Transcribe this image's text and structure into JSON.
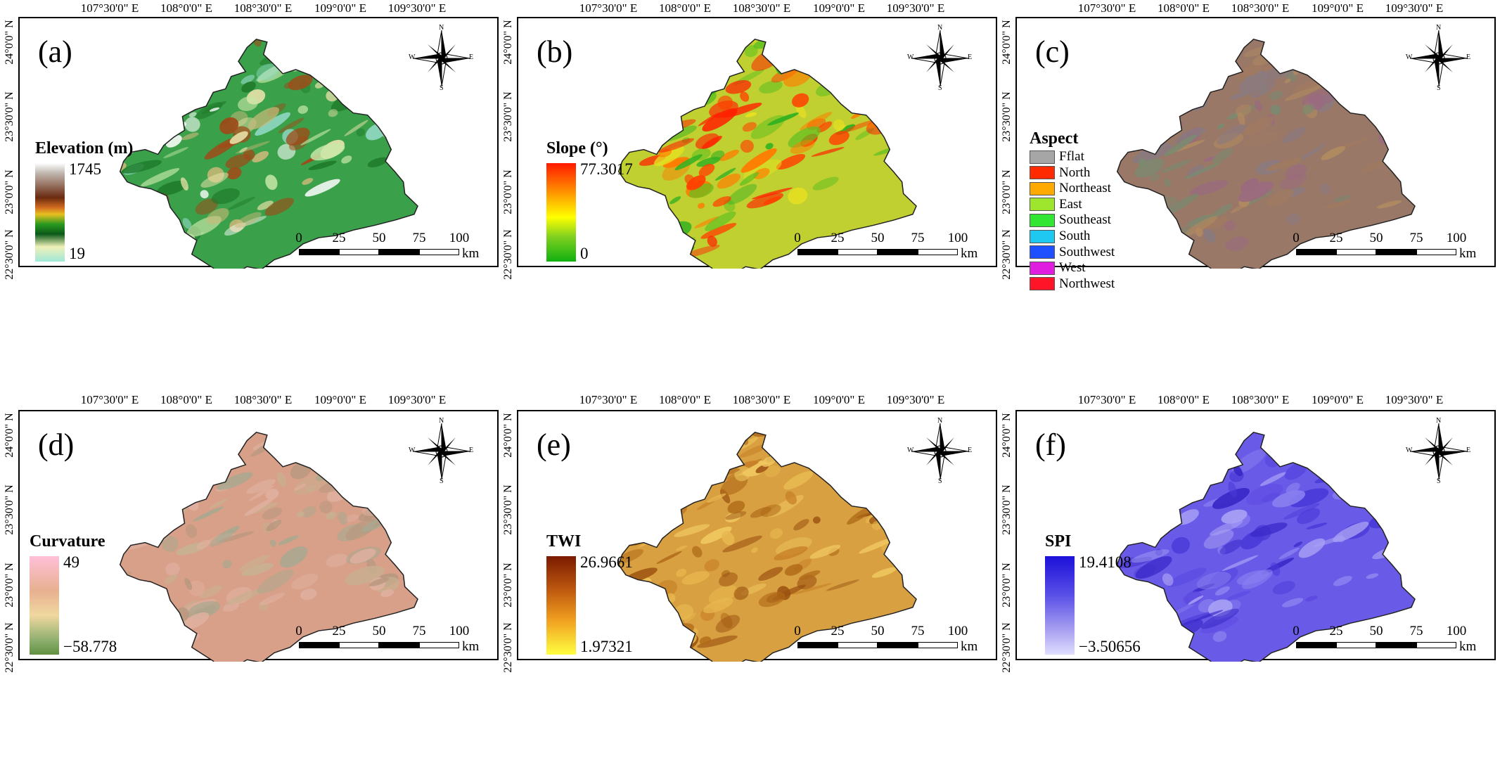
{
  "longitude_labels": [
    "107°30'0\" E",
    "108°0'0\" E",
    "108°30'0\" E",
    "109°0'0\" E",
    "109°30'0\" E"
  ],
  "latitude_labels": [
    "24°0'0\" N",
    "23°30'0\" N",
    "23°0'0\" N",
    "22°30'0\" N"
  ],
  "compass": {
    "n": "N",
    "s": "S",
    "e": "E",
    "w": "W"
  },
  "scalebar": {
    "ticks": [
      "0",
      "25",
      "50",
      "75",
      "100"
    ],
    "unit": "km"
  },
  "panels": {
    "a": {
      "label": "(a)",
      "legend_title": "Elevation (m)",
      "max": "1745",
      "min": "19"
    },
    "b": {
      "label": "(b)",
      "legend_title": "Slope (°)",
      "max": "77.3017",
      "min": "0"
    },
    "c": {
      "label": "(c)",
      "legend_title": "Aspect",
      "classes": [
        {
          "name": "Fflat",
          "color": "#a6a6a6"
        },
        {
          "name": "North",
          "color": "#ff2a00"
        },
        {
          "name": "Northeast",
          "color": "#ffaa00"
        },
        {
          "name": "East",
          "color": "#9ee62e"
        },
        {
          "name": "Southeast",
          "color": "#33e633"
        },
        {
          "name": "South",
          "color": "#1ec8f0"
        },
        {
          "name": "Southwest",
          "color": "#1f50ff"
        },
        {
          "name": "West",
          "color": "#e01ee0"
        },
        {
          "name": "Northwest",
          "color": "#ff1428"
        }
      ]
    },
    "d": {
      "label": "(d)",
      "legend_title": "Curvature",
      "max": "49",
      "min": "−58.778"
    },
    "e": {
      "label": "(e)",
      "legend_title": "TWI",
      "max": "26.9661",
      "min": "1.97321"
    },
    "f": {
      "label": "(f)",
      "legend_title": "SPI",
      "max": "19.4108",
      "min": "−3.50656"
    }
  }
}
